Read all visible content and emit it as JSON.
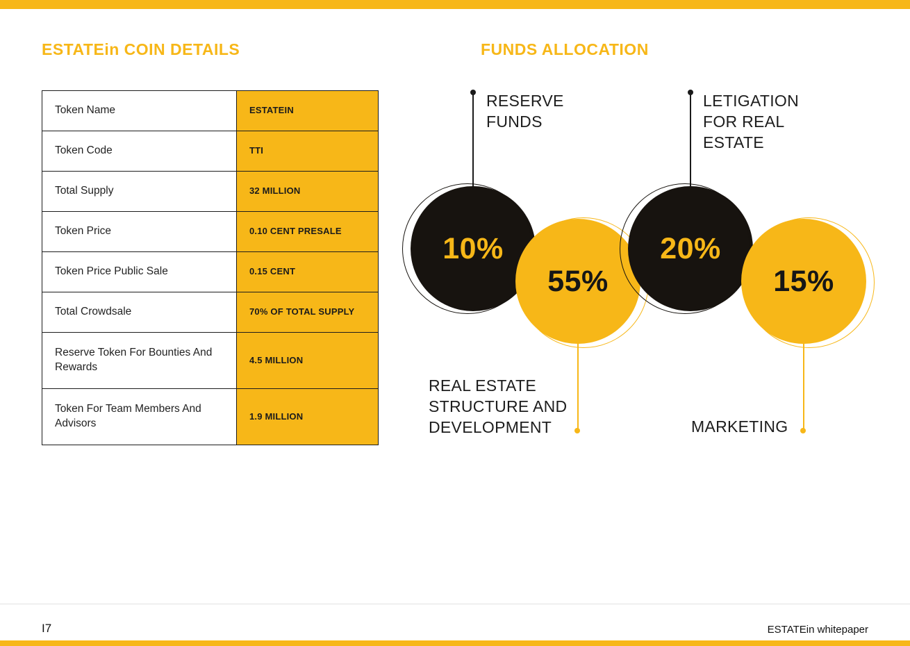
{
  "colors": {
    "gold": "#F7B718",
    "ink": "#17130F"
  },
  "coin_details": {
    "title": "ESTATEin COIN DETAILS",
    "rows": [
      {
        "label": "Token Name",
        "value": "ESTATEIN"
      },
      {
        "label": "Token Code",
        "value": "TTI"
      },
      {
        "label": "Total Supply",
        "value": "32 MILLION"
      },
      {
        "label": "Token Price",
        "value": "0.10 CENT PRESALE"
      },
      {
        "label": "Token Price Public Sale",
        "value": "0.15 CENT"
      },
      {
        "label": "Total Crowdsale",
        "value": "70% OF TOTAL SUPPLY"
      },
      {
        "label": "Reserve Token For Bounties And Rewards",
        "value": "4.5 MILLION"
      },
      {
        "label": "Token For Team Members And Advisors",
        "value": "1.9 MILLION"
      }
    ]
  },
  "funds_allocation": {
    "title": "FUNDS ALLOCATION",
    "items": [
      {
        "label": "RESERVE FUNDS",
        "percent": "10%",
        "color": "black"
      },
      {
        "label": "REAL ESTATE STRUCTURE AND DEVELOPMENT",
        "percent": "55%",
        "color": "gold"
      },
      {
        "label": "LETIGATION FOR REAL ESTATE",
        "percent": "20%",
        "color": "black"
      },
      {
        "label": "MARKETING",
        "percent": "15%",
        "color": "gold"
      }
    ]
  },
  "chart_data": {
    "type": "pie",
    "title": "FUNDS ALLOCATION",
    "categories": [
      "RESERVE FUNDS",
      "REAL ESTATE STRUCTURE AND DEVELOPMENT",
      "LETIGATION FOR REAL ESTATE",
      "MARKETING"
    ],
    "values": [
      10,
      55,
      20,
      15
    ],
    "unit": "percent"
  },
  "footer": {
    "page_number": "I7",
    "label": "ESTATEin whitepaper"
  }
}
